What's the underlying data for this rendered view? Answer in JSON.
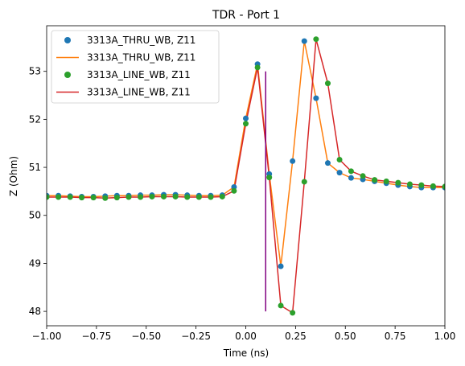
{
  "chart_data": {
    "type": "line",
    "title": "TDR - Port 1",
    "xlabel": "Time (ns)",
    "ylabel": "Z (Ohm)",
    "xlim": [
      -1.0,
      1.0
    ],
    "ylim": [
      47.7,
      53.95
    ],
    "xticks": [
      -1.0,
      -0.75,
      -0.5,
      -0.25,
      0.0,
      0.25,
      0.5,
      0.75,
      1.0
    ],
    "xtick_labels": [
      "−1.00",
      "−0.75",
      "−0.50",
      "−0.25",
      "0.00",
      "0.25",
      "0.50",
      "0.75",
      "1.00"
    ],
    "yticks": [
      48,
      49,
      50,
      51,
      52,
      53
    ],
    "ytick_labels": [
      "48",
      "49",
      "50",
      "51",
      "52",
      "53"
    ],
    "grid": false,
    "legend_position": "top-left",
    "series": [
      {
        "name": "3313A_THRU_WB, Z11",
        "style": "markers",
        "color": "#1f77b4",
        "x": [
          -1.0,
          -0.941,
          -0.882,
          -0.824,
          -0.765,
          -0.706,
          -0.647,
          -0.588,
          -0.529,
          -0.471,
          -0.412,
          -0.353,
          -0.294,
          -0.235,
          -0.176,
          -0.118,
          -0.059,
          0.0,
          0.059,
          0.118,
          0.176,
          0.235,
          0.294,
          0.353,
          0.412,
          0.471,
          0.529,
          0.588,
          0.647,
          0.706,
          0.765,
          0.824,
          0.882,
          0.941,
          1.0
        ],
        "y": [
          50.41,
          50.41,
          50.4,
          50.39,
          50.39,
          50.4,
          50.41,
          50.41,
          50.42,
          50.42,
          50.43,
          50.43,
          50.42,
          50.41,
          50.41,
          50.42,
          50.59,
          52.02,
          53.15,
          50.86,
          48.94,
          51.13,
          53.63,
          52.44,
          51.09,
          50.89,
          50.78,
          50.75,
          50.71,
          50.67,
          50.63,
          50.6,
          50.58,
          50.58,
          50.58
        ]
      },
      {
        "name": "3313A_THRU_WB, Z11",
        "style": "line",
        "color": "#ff7f0e",
        "x": [
          -1.0,
          -0.941,
          -0.882,
          -0.824,
          -0.765,
          -0.706,
          -0.647,
          -0.588,
          -0.529,
          -0.471,
          -0.412,
          -0.353,
          -0.294,
          -0.235,
          -0.176,
          -0.118,
          -0.059,
          0.0,
          0.059,
          0.118,
          0.176,
          0.235,
          0.294,
          0.353,
          0.412,
          0.471,
          0.529,
          0.588,
          0.647,
          0.706,
          0.765,
          0.824,
          0.882,
          0.941,
          1.0
        ],
        "y": [
          50.41,
          50.41,
          50.4,
          50.39,
          50.39,
          50.4,
          50.41,
          50.41,
          50.42,
          50.42,
          50.43,
          50.43,
          50.42,
          50.41,
          50.41,
          50.42,
          50.59,
          52.02,
          53.15,
          50.86,
          48.94,
          51.13,
          53.63,
          52.44,
          51.09,
          50.89,
          50.78,
          50.75,
          50.71,
          50.67,
          50.63,
          50.6,
          50.58,
          50.58,
          50.58
        ]
      },
      {
        "name": "3313A_LINE_WB, Z11",
        "style": "markers",
        "color": "#2ca02c",
        "x": [
          -1.0,
          -0.941,
          -0.882,
          -0.824,
          -0.765,
          -0.706,
          -0.647,
          -0.588,
          -0.529,
          -0.471,
          -0.412,
          -0.353,
          -0.294,
          -0.235,
          -0.176,
          -0.118,
          -0.059,
          0.0,
          0.059,
          0.118,
          0.176,
          0.235,
          0.294,
          0.353,
          0.412,
          0.471,
          0.529,
          0.588,
          0.647,
          0.706,
          0.765,
          0.824,
          0.882,
          0.941,
          1.0
        ],
        "y": [
          50.38,
          50.38,
          50.38,
          50.37,
          50.37,
          50.36,
          50.37,
          50.38,
          50.38,
          50.39,
          50.39,
          50.39,
          50.38,
          50.38,
          50.38,
          50.39,
          50.51,
          51.91,
          53.08,
          50.79,
          48.12,
          47.97,
          50.7,
          53.67,
          52.75,
          51.16,
          50.92,
          50.82,
          50.74,
          50.71,
          50.68,
          50.65,
          50.63,
          50.61,
          50.6
        ]
      },
      {
        "name": "3313A_LINE_WB, Z11",
        "style": "line",
        "color": "#d62728",
        "x": [
          -1.0,
          -0.941,
          -0.882,
          -0.824,
          -0.765,
          -0.706,
          -0.647,
          -0.588,
          -0.529,
          -0.471,
          -0.412,
          -0.353,
          -0.294,
          -0.235,
          -0.176,
          -0.118,
          -0.059,
          0.0,
          0.059,
          0.118,
          0.176,
          0.235,
          0.294,
          0.353,
          0.412,
          0.471,
          0.529,
          0.588,
          0.647,
          0.706,
          0.765,
          0.824,
          0.882,
          0.941,
          1.0
        ],
        "y": [
          50.38,
          50.38,
          50.38,
          50.37,
          50.37,
          50.36,
          50.37,
          50.38,
          50.38,
          50.39,
          50.39,
          50.39,
          50.38,
          50.38,
          50.38,
          50.39,
          50.51,
          51.91,
          53.08,
          50.79,
          48.12,
          47.97,
          50.7,
          53.67,
          52.75,
          51.16,
          50.92,
          50.82,
          50.74,
          50.71,
          50.68,
          50.65,
          50.63,
          50.61,
          50.6
        ]
      }
    ],
    "vline": {
      "x": 0.1,
      "ymin": 48.0,
      "ymax": 53.0,
      "color": "#800080"
    }
  }
}
